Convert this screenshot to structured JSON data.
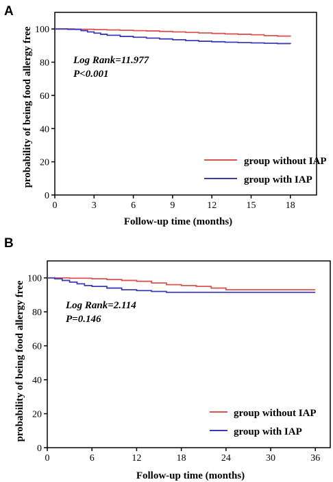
{
  "chart_data": [
    {
      "type": "line",
      "panel": "A",
      "xlabel": "Follow-up  time  (months)",
      "ylabel": "probability of being food allergy free",
      "xlim": [
        0,
        20
      ],
      "ylim": [
        0,
        110
      ],
      "xticks": [
        0,
        3,
        6,
        9,
        12,
        15,
        18
      ],
      "yticks": [
        0,
        20,
        40,
        60,
        80,
        100
      ],
      "annotations": [
        "Log Rank=11.977",
        "P<0.001"
      ],
      "legend_position": "bottom-right",
      "series": [
        {
          "name": "group without IAP",
          "color": "#d9534f",
          "x": [
            0,
            1.5,
            3,
            4,
            5,
            6,
            7,
            8,
            9,
            10,
            11,
            12,
            13,
            14,
            15,
            16,
            17,
            18
          ],
          "y": [
            100,
            99.8,
            99.6,
            99.4,
            99.2,
            99,
            98.8,
            98.5,
            98.2,
            97.9,
            97.6,
            97.3,
            97,
            96.8,
            96.5,
            96,
            95.7,
            95.5
          ]
        },
        {
          "name": "group with IAP",
          "color": "#3a3ab8",
          "x": [
            0,
            1,
            2,
            2.5,
            3,
            3.5,
            4,
            5,
            6,
            7,
            8,
            9,
            10,
            11,
            12,
            13,
            14,
            15,
            16,
            17,
            18
          ],
          "y": [
            100,
            99.8,
            99,
            98.2,
            97.5,
            96.8,
            96.2,
            95.5,
            95,
            94.5,
            94,
            93.5,
            93,
            92.6,
            92.3,
            92,
            91.8,
            91.6,
            91.4,
            91.2,
            91
          ]
        }
      ]
    },
    {
      "type": "line",
      "panel": "B",
      "xlabel": "Follow-up  time  (months)",
      "ylabel": "probability of being food allergy free",
      "xlim": [
        0,
        38
      ],
      "ylim": [
        0,
        110
      ],
      "xticks": [
        0,
        6,
        12,
        18,
        24,
        30,
        36
      ],
      "yticks": [
        0,
        20,
        40,
        60,
        80,
        100
      ],
      "annotations": [
        "Log Rank=2.114",
        "P=0.146"
      ],
      "legend_position": "bottom-right",
      "series": [
        {
          "name": "group without IAP",
          "color": "#d9534f",
          "x": [
            0,
            3,
            6,
            8,
            10,
            12,
            14,
            16,
            18,
            20,
            22,
            24,
            36
          ],
          "y": [
            100,
            99.8,
            99.5,
            99,
            98.5,
            98,
            97,
            96,
            95.5,
            95,
            94,
            93,
            93
          ]
        },
        {
          "name": "group with IAP",
          "color": "#3a3ab8",
          "x": [
            0,
            1,
            2,
            3,
            4,
            5,
            6,
            8,
            10,
            12,
            14,
            16,
            36
          ],
          "y": [
            100,
            99.5,
            98.5,
            97.5,
            96.5,
            95.5,
            95,
            94,
            93,
            92.5,
            92,
            91.5,
            91.5
          ]
        }
      ]
    }
  ]
}
